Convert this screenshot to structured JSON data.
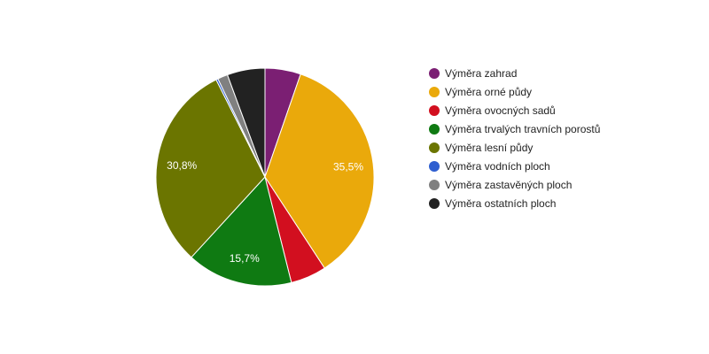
{
  "chart_data": {
    "type": "pie",
    "title": "",
    "slices": [
      {
        "name": "Výměra zahrad",
        "value": 5.3,
        "color": "#7b1f73",
        "label": ""
      },
      {
        "name": "Výměra orné půdy",
        "value": 35.5,
        "color": "#eaa90b",
        "label": "35,5%"
      },
      {
        "name": "Výměra ovocných sadů",
        "value": 5.3,
        "color": "#d20f1f",
        "label": ""
      },
      {
        "name": "Výměra trvalých travních porostů",
        "value": 15.7,
        "color": "#0f7a12",
        "label": "15,7%"
      },
      {
        "name": "Výměra lesní půdy",
        "value": 30.8,
        "color": "#6b7500",
        "label": "30,8%"
      },
      {
        "name": "Výměra vodních ploch",
        "value": 0.3,
        "color": "#2f5fd0",
        "label": ""
      },
      {
        "name": "Výměra zastavěných ploch",
        "value": 1.5,
        "color": "#808080",
        "label": ""
      },
      {
        "name": "Výměra ostatních ploch",
        "value": 5.6,
        "color": "#222222",
        "label": ""
      }
    ],
    "legend_position": "right"
  }
}
